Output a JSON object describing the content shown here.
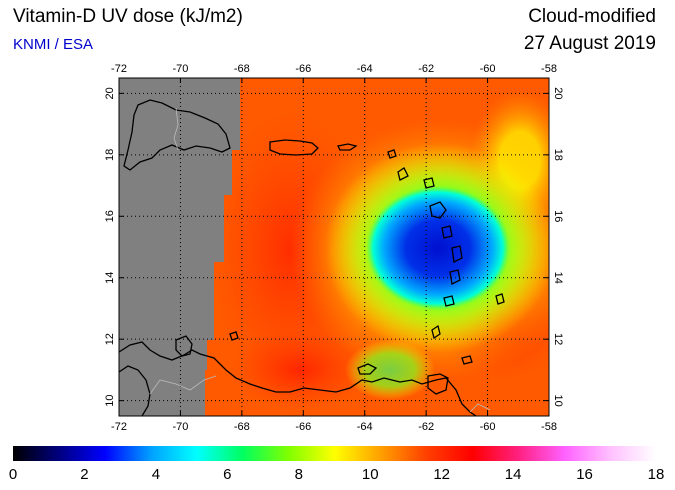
{
  "header": {
    "title": "Vitamin-D UV dose (kJ/m2)",
    "credit": "KNMI / ESA",
    "product": "Cloud-modified",
    "date": "27 August 2019"
  },
  "map": {
    "lon_range": [
      -72,
      -58
    ],
    "lat_range": [
      9.5,
      20.5
    ],
    "lon_ticks": [
      "-72",
      "-70",
      "-68",
      "-66",
      "-64",
      "-62",
      "-60",
      "-58"
    ],
    "lat_ticks": [
      "10",
      "12",
      "14",
      "16",
      "18",
      "20"
    ],
    "grid": "dotted",
    "colors": {
      "no_data": "#808080",
      "coast": "#000000",
      "border": "#bbbbbb"
    }
  },
  "colorbar": {
    "min": 0,
    "max": 18,
    "labels": [
      "0",
      "2",
      "4",
      "6",
      "8",
      "10",
      "12",
      "14",
      "16",
      "18"
    ],
    "stops": [
      "#000000",
      "#000080",
      "#0000ff",
      "#00a0ff",
      "#00ffff",
      "#00ff60",
      "#80ff00",
      "#ffff00",
      "#ffa000",
      "#ff4000",
      "#ff0000",
      "#ff2080",
      "#ff60ff",
      "#ffc0ff",
      "#ffffff"
    ]
  }
}
